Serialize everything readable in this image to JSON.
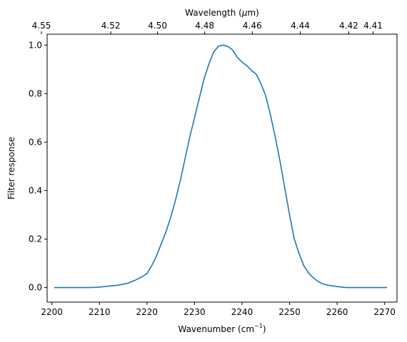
{
  "chart_data": {
    "type": "line",
    "title": "",
    "xlabel": "Wavenumber (cm",
    "xlabel_sup": "−1",
    "xlabel_close": ")",
    "ylabel": "Filter response",
    "top_xlabel_prefix": "Wavelength (",
    "top_xlabel_mu": "μ",
    "top_xlabel_suffix": "m)",
    "xlim": [
      2199,
      2272.6
    ],
    "ylim": [
      -0.06,
      1.045
    ],
    "x_ticks": [
      2200,
      2210,
      2220,
      2230,
      2240,
      2250,
      2260,
      2270
    ],
    "x_tick_labels": [
      "2200",
      "2210",
      "2220",
      "2230",
      "2240",
      "2250",
      "2260",
      "2270"
    ],
    "y_ticks": [
      0.0,
      0.2,
      0.4,
      0.6,
      0.8,
      1.0
    ],
    "y_tick_labels": [
      "0.0",
      "0.2",
      "0.4",
      "0.6",
      "0.8",
      "1.0"
    ],
    "top_ticks_wavelength_um": [
      4.55,
      4.52,
      4.5,
      4.48,
      4.46,
      4.44,
      4.42,
      4.41
    ],
    "top_tick_labels": [
      "4.55",
      "4.52",
      "4.50",
      "4.48",
      "4.46",
      "4.44",
      "4.42",
      "4.41"
    ],
    "grid": false,
    "series": [
      {
        "color": "#1f77b4",
        "x": [
          2200.5,
          2205,
          2208,
          2210,
          2212,
          2214,
          2216,
          2217.5,
          2218,
          2219,
          2220,
          2221,
          2222,
          2223,
          2224,
          2225,
          2226,
          2227,
          2228,
          2229,
          2230,
          2231,
          2232,
          2233,
          2234,
          2235,
          2236,
          2237,
          2238,
          2239,
          2240,
          2241,
          2242,
          2243,
          2244,
          2245,
          2246,
          2247,
          2248,
          2249,
          2250,
          2251,
          2252,
          2253,
          2254,
          2255,
          2256,
          2257,
          2258,
          2259,
          2260,
          2261,
          2262,
          2263,
          2264,
          2265,
          2266,
          2268,
          2270.5
        ],
        "y": [
          0.0,
          0.0,
          0.0,
          0.002,
          0.006,
          0.01,
          0.018,
          0.03,
          0.035,
          0.045,
          0.058,
          0.09,
          0.13,
          0.18,
          0.23,
          0.29,
          0.36,
          0.44,
          0.53,
          0.62,
          0.7,
          0.78,
          0.86,
          0.92,
          0.97,
          0.995,
          1.0,
          0.995,
          0.98,
          0.95,
          0.93,
          0.915,
          0.895,
          0.88,
          0.84,
          0.79,
          0.71,
          0.62,
          0.52,
          0.41,
          0.3,
          0.2,
          0.14,
          0.09,
          0.06,
          0.04,
          0.025,
          0.015,
          0.01,
          0.007,
          0.004,
          0.002,
          0.0,
          0.0,
          0.0,
          0.0,
          0.0,
          0.0,
          0.0
        ]
      }
    ]
  }
}
